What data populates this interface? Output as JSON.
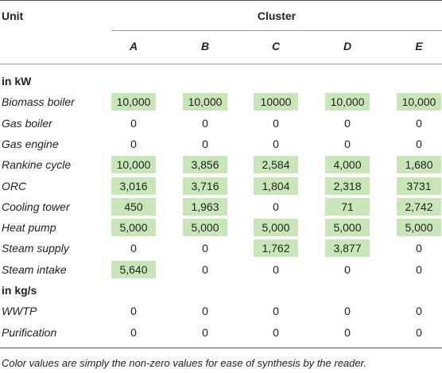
{
  "header": {
    "unit": "Unit",
    "cluster": "Cluster",
    "clusters": [
      "A",
      "B",
      "C",
      "D",
      "E"
    ]
  },
  "sections": [
    {
      "title": "in kW",
      "rows": [
        {
          "unit": "Biomass boiler",
          "values": [
            "10,000",
            "10,000",
            "10000",
            "10,000",
            "10,000"
          ]
        },
        {
          "unit": "Gas boiler",
          "values": [
            "0",
            "0",
            "0",
            "0",
            "0"
          ]
        },
        {
          "unit": "Gas engine",
          "values": [
            "0",
            "0",
            "0",
            "0",
            "0"
          ]
        },
        {
          "unit": "Rankine cycle",
          "values": [
            "10,000",
            "3,856",
            "2,584",
            "4,000",
            "1,680"
          ]
        },
        {
          "unit": "ORC",
          "values": [
            "3,016",
            "3,716",
            "1,804",
            "2,318",
            "3731"
          ]
        },
        {
          "unit": "Cooling tower",
          "values": [
            "450",
            "1,963",
            "0",
            "71",
            "2,742"
          ]
        },
        {
          "unit": "Heat pump",
          "values": [
            "5,000",
            "5,000",
            "5,000",
            "5,000",
            "5,000"
          ]
        },
        {
          "unit": "Steam supply",
          "values": [
            "0",
            "0",
            "1,762",
            "3,877",
            "0"
          ]
        },
        {
          "unit": "Steam intake",
          "values": [
            "5,640",
            "0",
            "0",
            "0",
            "0"
          ]
        }
      ]
    },
    {
      "title": "in kg/s",
      "rows": [
        {
          "unit": "WWTP",
          "values": [
            "0",
            "0",
            "0",
            "0",
            "0"
          ]
        },
        {
          "unit": "Purification",
          "values": [
            "0",
            "0",
            "0",
            "0",
            "0"
          ]
        }
      ]
    }
  ],
  "footnote": "Color values are simply the non-zero values for ease of synthesis by the reader."
}
